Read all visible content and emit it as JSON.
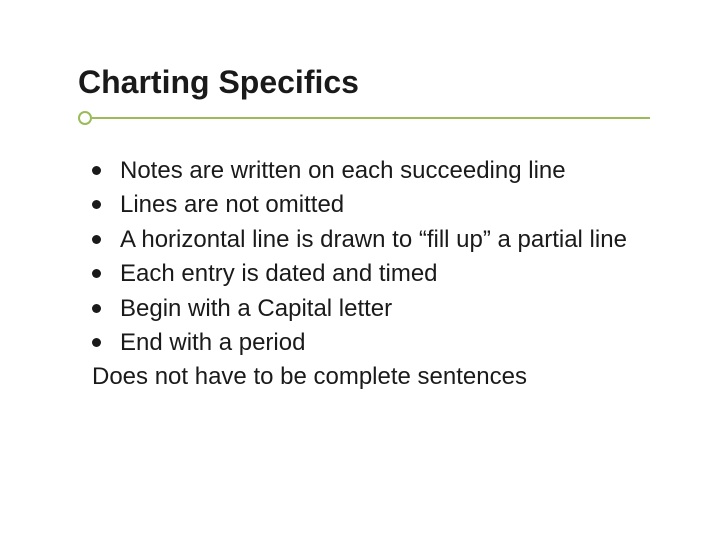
{
  "title": "Charting Specifics",
  "accent_color": "#9bbb59",
  "text_color": "#1a1a1a",
  "background_color": "#ffffff",
  "title_fontsize": 32,
  "body_fontsize": 24,
  "bullets": {
    "b0": "Notes are written on each succeeding line",
    "b1": "Lines are not omitted",
    "b2": "A horizontal line is drawn to “fill up” a partial line",
    "b3": "Each entry is dated and timed",
    "b4": "Begin with a Capital letter",
    "b5": "End with a period"
  },
  "footer": "Does not have to be complete sentences"
}
